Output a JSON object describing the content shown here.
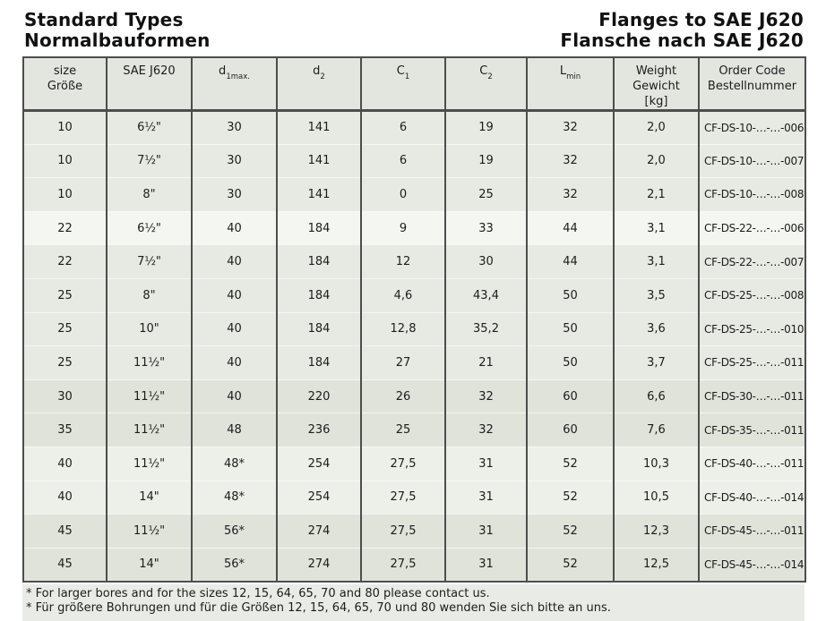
{
  "titles": {
    "left1": "Standard Types",
    "left2": "Normalbauformen",
    "right1": "Flanges to SAE J620",
    "right2": "Flansche nach SAE J620"
  },
  "table": {
    "columns": [
      {
        "id": "size",
        "label_lines": [
          "size",
          "Größe"
        ]
      },
      {
        "id": "sae",
        "label_lines": [
          "SAE J620"
        ]
      },
      {
        "id": "d1max",
        "base": "d",
        "sub": "1max."
      },
      {
        "id": "d2",
        "base": "d",
        "sub": "2"
      },
      {
        "id": "c1",
        "base": "C",
        "sub": "1"
      },
      {
        "id": "c2",
        "base": "C",
        "sub": "2"
      },
      {
        "id": "lmin",
        "base": "L",
        "sub": "min"
      },
      {
        "id": "weight",
        "label_lines": [
          "Weight",
          "Gewicht",
          "[kg]"
        ]
      },
      {
        "id": "order-code",
        "label_lines": [
          "Order Code",
          "Bestellnummer"
        ]
      }
    ],
    "rows": [
      {
        "shade": "mid",
        "cells": [
          "10",
          "6½\"",
          "30",
          "141",
          "6",
          "19",
          "32",
          "2,0",
          "CF-DS-10-…-…-006"
        ]
      },
      {
        "shade": "mid",
        "cells": [
          "10",
          "7½\"",
          "30",
          "141",
          "6",
          "19",
          "32",
          "2,0",
          "CF-DS-10-…-…-007"
        ]
      },
      {
        "shade": "mid",
        "cells": [
          "10",
          "8\"",
          "30",
          "141",
          "0",
          "25",
          "32",
          "2,1",
          "CF-DS-10-…-…-008"
        ]
      },
      {
        "shade": "light",
        "cells": [
          "22",
          "6½\"",
          "40",
          "184",
          "9",
          "33",
          "44",
          "3,1",
          "CF-DS-22-…-…-006"
        ]
      },
      {
        "shade": "mid",
        "cells": [
          "22",
          "7½\"",
          "40",
          "184",
          "12",
          "30",
          "44",
          "3,1",
          "CF-DS-22-…-…-007"
        ]
      },
      {
        "shade": "mid",
        "cells": [
          "25",
          "8\"",
          "40",
          "184",
          "4,6",
          "43,4",
          "50",
          "3,5",
          "CF-DS-25-…-…-008"
        ]
      },
      {
        "shade": "mid",
        "cells": [
          "25",
          "10\"",
          "40",
          "184",
          "12,8",
          "35,2",
          "50",
          "3,6",
          "CF-DS-25-…-…-010"
        ]
      },
      {
        "shade": "mid",
        "cells": [
          "25",
          "11½\"",
          "40",
          "184",
          "27",
          "21",
          "50",
          "3,7",
          "CF-DS-25-…-…-011"
        ]
      },
      {
        "shade": "dark",
        "cells": [
          "30",
          "11½\"",
          "40",
          "220",
          "26",
          "32",
          "60",
          "6,6",
          "CF-DS-30-…-…-011"
        ]
      },
      {
        "shade": "dark",
        "cells": [
          "35",
          "11½\"",
          "48",
          "236",
          "25",
          "32",
          "60",
          "7,6",
          "CF-DS-35-…-…-011"
        ]
      },
      {
        "shade": "soft",
        "cells": [
          "40",
          "11½\"",
          "48*",
          "254",
          "27,5",
          "31",
          "52",
          "10,3",
          "CF-DS-40-…-…-011"
        ]
      },
      {
        "shade": "soft",
        "cells": [
          "40",
          "14\"",
          "48*",
          "254",
          "27,5",
          "31",
          "52",
          "10,5",
          "CF-DS-40-…-…-014"
        ]
      },
      {
        "shade": "dark",
        "cells": [
          "45",
          "11½\"",
          "56*",
          "274",
          "27,5",
          "31",
          "52",
          "12,3",
          "CF-DS-45-…-…-011"
        ]
      },
      {
        "shade": "dark",
        "cells": [
          "45",
          "14\"",
          "56*",
          "274",
          "27,5",
          "31",
          "52",
          "12,5",
          "CF-DS-45-…-…-014"
        ]
      }
    ]
  },
  "footnotes": [
    "* For larger bores and for the sizes 12, 15, 64, 65, 70 and 80 please contact us.",
    "* Für größere Bohrungen und für die Größen 12, 15, 64, 65, 70 und 80 wenden Sie sich bitte an uns."
  ],
  "colors": {
    "border_dark": "#4d4d4d",
    "header_bg": "#e2e6df",
    "row_mid": "#e7eae3",
    "row_light": "#f4f6f2",
    "row_soft": "#edefe9",
    "row_dark": "#dfe3da",
    "footnote_bg": "#e9ece6"
  }
}
